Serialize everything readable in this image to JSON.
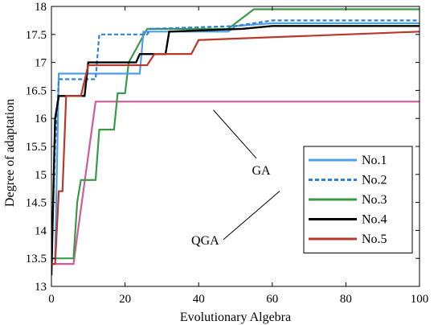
{
  "chart_data": {
    "type": "line",
    "title": "",
    "xlabel": "Evolutionary Algebra",
    "ylabel": "Degree of adaptation",
    "xlim": [
      0,
      100
    ],
    "ylim": [
      13,
      18
    ],
    "xticks": [
      0,
      20,
      40,
      60,
      80,
      100
    ],
    "yticks": [
      13,
      13.5,
      14,
      14.5,
      15,
      15.5,
      16,
      16.5,
      17,
      17.5,
      18
    ],
    "grid": false,
    "legend_position": "center-right",
    "series": [
      {
        "name": "No.1",
        "color": "#4f9fe6",
        "dash": "solid",
        "points": [
          [
            0,
            13.5
          ],
          [
            1,
            13.5
          ],
          [
            2,
            16.8
          ],
          [
            24,
            16.8
          ],
          [
            25,
            17.55
          ],
          [
            48,
            17.55
          ],
          [
            50,
            17.65
          ],
          [
            60,
            17.7
          ],
          [
            100,
            17.7
          ]
        ]
      },
      {
        "name": "No.2",
        "color": "#2e7fd6",
        "dash": "dashed",
        "points": [
          [
            0,
            13.6
          ],
          [
            1,
            15.5
          ],
          [
            2,
            16.7
          ],
          [
            12,
            16.7
          ],
          [
            13,
            17.5
          ],
          [
            26,
            17.5
          ],
          [
            27,
            17.6
          ],
          [
            50,
            17.65
          ],
          [
            60,
            17.75
          ],
          [
            100,
            17.75
          ]
        ]
      },
      {
        "name": "No.3",
        "color": "#3a9a4a",
        "dash": "solid",
        "points": [
          [
            0,
            13.5
          ],
          [
            6,
            13.5
          ],
          [
            7,
            14.5
          ],
          [
            8,
            14.9
          ],
          [
            12,
            14.9
          ],
          [
            13,
            15.8
          ],
          [
            17,
            15.8
          ],
          [
            18,
            16.45
          ],
          [
            20,
            16.45
          ],
          [
            21,
            17.0
          ],
          [
            26,
            17.6
          ],
          [
            48,
            17.6
          ],
          [
            55,
            17.95
          ],
          [
            100,
            17.95
          ]
        ]
      },
      {
        "name": "No.4",
        "color": "#000000",
        "dash": "solid",
        "points": [
          [
            0,
            13.2
          ],
          [
            1,
            16.0
          ],
          [
            2,
            16.4
          ],
          [
            9,
            16.4
          ],
          [
            10,
            17.0
          ],
          [
            23,
            17.0
          ],
          [
            24,
            17.15
          ],
          [
            31,
            17.15
          ],
          [
            32,
            17.55
          ],
          [
            52,
            17.6
          ],
          [
            60,
            17.65
          ],
          [
            100,
            17.65
          ]
        ]
      },
      {
        "name": "No.5",
        "color": "#b8392c",
        "dash": "solid",
        "points": [
          [
            0,
            13.4
          ],
          [
            1,
            13.4
          ],
          [
            2,
            14.7
          ],
          [
            3,
            14.7
          ],
          [
            4,
            16.4
          ],
          [
            8,
            16.4
          ],
          [
            10,
            16.95
          ],
          [
            26,
            16.95
          ],
          [
            28,
            17.15
          ],
          [
            38,
            17.15
          ],
          [
            40,
            17.4
          ],
          [
            60,
            17.45
          ],
          [
            80,
            17.5
          ],
          [
            100,
            17.55
          ]
        ]
      },
      {
        "name": "",
        "color": "#d45a96",
        "dash": "solid",
        "points": [
          [
            0,
            13.4
          ],
          [
            6,
            13.4
          ],
          [
            7,
            13.9
          ],
          [
            12,
            16.3
          ],
          [
            100,
            16.3
          ]
        ]
      }
    ],
    "annotations": [
      {
        "text": "GA",
        "text_at": [
          57,
          15.0
        ],
        "arrow_to": [
          44,
          16.15
        ]
      },
      {
        "text": "QGA",
        "text_at": [
          38,
          13.75
        ],
        "arrow_to": [
          62,
          14.7
        ]
      }
    ]
  }
}
